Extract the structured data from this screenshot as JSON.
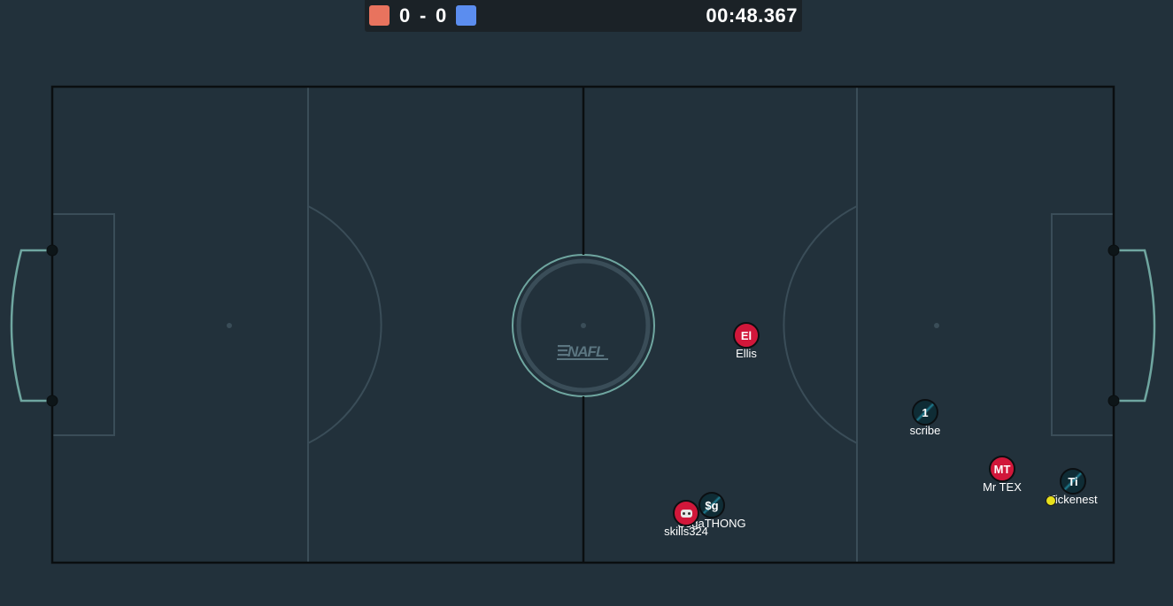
{
  "scoreboard": {
    "red_color": "#e8735e",
    "blue_color": "#5b8def",
    "red_score": "0",
    "separator": "-",
    "blue_score": "0",
    "clock": "00:48.367"
  },
  "pitch": {
    "background": "#22313b",
    "line_color": "#0a0e10",
    "marking_color": "#3a4d58",
    "goal_color": "#6fa6a0",
    "logo_text": "NAFL"
  },
  "players": [
    {
      "name": "Ellis",
      "avatar": "El",
      "team": "red"
    },
    {
      "name": "scribe",
      "avatar": "1",
      "team": "blue"
    },
    {
      "name": "Mr TEX",
      "avatar": "MT",
      "team": "red"
    },
    {
      "name": "Tickenest",
      "avatar": "Ti",
      "team": "blue"
    },
    {
      "name": "SegaTHONG",
      "avatar": "$g",
      "team": "blue"
    },
    {
      "name": "skills324",
      "avatar": "robot-icon",
      "team": "red"
    }
  ],
  "ball": {
    "color": "#e7e01c"
  }
}
